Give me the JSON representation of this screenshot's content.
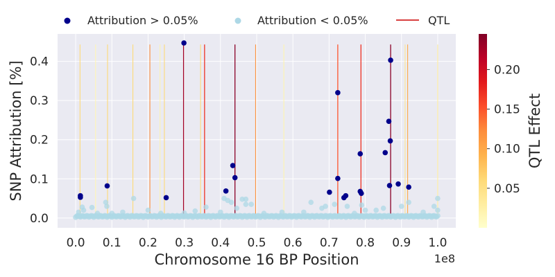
{
  "chart_data": {
    "type": "scatter",
    "xlabel": "Chromosome 16 BP Position",
    "ylabel": "SNP Attribution [%]",
    "x_offset_label": "1e8",
    "xlim": [
      -0.05,
      1.05
    ],
    "ylim": [
      -0.025,
      0.47
    ],
    "x_ticks": [
      0.0,
      0.1,
      0.2,
      0.3,
      0.4,
      0.5,
      0.6,
      0.7,
      0.8,
      0.9,
      1.0
    ],
    "x_tick_labels": [
      "0.0",
      "0.1",
      "0.2",
      "0.3",
      "0.4",
      "0.5",
      "0.6",
      "0.7",
      "0.8",
      "0.9",
      "1.0"
    ],
    "y_ticks": [
      0.0,
      0.1,
      0.2,
      0.3,
      0.4
    ],
    "y_tick_labels": [
      "0.0",
      "0.1",
      "0.2",
      "0.3",
      "0.4"
    ],
    "grid": true,
    "legend": {
      "placement": "top, outside plot",
      "entries": [
        {
          "label": "Attribution > 0.05%",
          "marker": "dot",
          "color": "#00008b"
        },
        {
          "label": "Attribution < 0.05%",
          "marker": "dot",
          "color": "#add8e6"
        },
        {
          "label": "QTL",
          "marker": "line",
          "color": "#cc0000"
        }
      ]
    },
    "series": [
      {
        "name": "Attribution > 0.05%",
        "color": "#00008b",
        "points": [
          [
            0.013,
            0.057
          ],
          [
            0.013,
            0.053
          ],
          [
            0.087,
            0.082
          ],
          [
            0.25,
            0.052
          ],
          [
            0.299,
            0.447
          ],
          [
            0.415,
            0.069
          ],
          [
            0.434,
            0.134
          ],
          [
            0.44,
            0.103
          ],
          [
            0.701,
            0.066
          ],
          [
            0.724,
            0.32
          ],
          [
            0.724,
            0.101
          ],
          [
            0.741,
            0.052
          ],
          [
            0.746,
            0.057
          ],
          [
            0.786,
            0.164
          ],
          [
            0.786,
            0.068
          ],
          [
            0.789,
            0.063
          ],
          [
            0.855,
            0.167
          ],
          [
            0.865,
            0.247
          ],
          [
            0.867,
            0.083
          ],
          [
            0.869,
            0.197
          ],
          [
            0.87,
            0.403
          ],
          [
            0.891,
            0.087
          ],
          [
            0.92,
            0.079
          ]
        ]
      },
      {
        "name": "Attribution < 0.05%",
        "color": "#add8e6",
        "points": [
          [
            0.008,
            0.015
          ],
          [
            0.018,
            0.028
          ],
          [
            0.022,
            0.02
          ],
          [
            0.045,
            0.027
          ],
          [
            0.06,
            0.012
          ],
          [
            0.083,
            0.04
          ],
          [
            0.086,
            0.03
          ],
          [
            0.1,
            0.012
          ],
          [
            0.13,
            0.015
          ],
          [
            0.16,
            0.05
          ],
          [
            0.2,
            0.02
          ],
          [
            0.235,
            0.012
          ],
          [
            0.3,
            0.013
          ],
          [
            0.33,
            0.018
          ],
          [
            0.36,
            0.028
          ],
          [
            0.4,
            0.015
          ],
          [
            0.41,
            0.05
          ],
          [
            0.42,
            0.045
          ],
          [
            0.43,
            0.04
          ],
          [
            0.445,
            0.025
          ],
          [
            0.46,
            0.048
          ],
          [
            0.47,
            0.048
          ],
          [
            0.47,
            0.035
          ],
          [
            0.485,
            0.035
          ],
          [
            0.52,
            0.012
          ],
          [
            0.57,
            0.015
          ],
          [
            0.63,
            0.015
          ],
          [
            0.65,
            0.04
          ],
          [
            0.68,
            0.025
          ],
          [
            0.69,
            0.03
          ],
          [
            0.715,
            0.035
          ],
          [
            0.75,
            0.03
          ],
          [
            0.77,
            0.012
          ],
          [
            0.79,
            0.033
          ],
          [
            0.8,
            0.02
          ],
          [
            0.83,
            0.02
          ],
          [
            0.85,
            0.025
          ],
          [
            0.9,
            0.03
          ],
          [
            0.92,
            0.04
          ],
          [
            0.96,
            0.015
          ],
          [
            0.99,
            0.03
          ],
          [
            1.0,
            0.05
          ],
          [
            1.0,
            0.02
          ]
        ]
      }
    ],
    "qtl": {
      "name": "QTL",
      "colorbar_label": "QTL Effect",
      "colorbar_range": [
        0.0,
        0.245
      ],
      "colorbar_ticks": [
        0.05,
        0.1,
        0.15,
        0.2
      ],
      "colorbar_tick_labels": [
        "0.05",
        "0.10",
        "0.15",
        "0.20"
      ],
      "colormap": "YlOrRd",
      "lines": [
        {
          "x": 0.012,
          "effect": 0.06
        },
        {
          "x": 0.055,
          "effect": 0.015
        },
        {
          "x": 0.088,
          "effect": 0.06
        },
        {
          "x": 0.158,
          "effect": 0.06
        },
        {
          "x": 0.205,
          "effect": 0.12
        },
        {
          "x": 0.233,
          "effect": 0.02
        },
        {
          "x": 0.245,
          "effect": 0.06
        },
        {
          "x": 0.298,
          "effect": 0.23
        },
        {
          "x": 0.345,
          "effect": 0.06
        },
        {
          "x": 0.356,
          "effect": 0.17
        },
        {
          "x": 0.44,
          "effect": 0.24
        },
        {
          "x": 0.497,
          "effect": 0.12
        },
        {
          "x": 0.575,
          "effect": 0.02
        },
        {
          "x": 0.724,
          "effect": 0.15
        },
        {
          "x": 0.788,
          "effect": 0.17
        },
        {
          "x": 0.87,
          "effect": 0.24
        },
        {
          "x": 0.91,
          "effect": 0.04
        },
        {
          "x": 0.917,
          "effect": 0.1
        },
        {
          "x": 1.0,
          "effect": 0.03
        }
      ]
    }
  }
}
